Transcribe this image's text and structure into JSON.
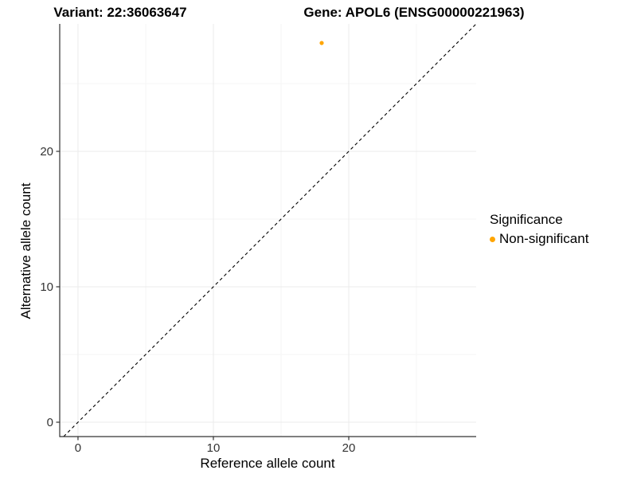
{
  "titles": {
    "left": "Variant: 22:36063647",
    "right": "Gene: APOL6 (ENSG00000221963)"
  },
  "chart_data": {
    "type": "scatter",
    "title": "Variant: 22:36063647   Gene: APOL6 (ENSG00000221963)",
    "xlabel": "Reference allele count",
    "ylabel": "Alternative allele count",
    "xlim": [
      -1.35,
      29.41
    ],
    "ylim": [
      -1.06,
      29.41
    ],
    "xticks": [
      0,
      10,
      20
    ],
    "yticks": [
      0,
      10,
      20
    ],
    "minor_xticks": [
      5,
      15,
      25
    ],
    "minor_yticks": [
      5,
      15,
      25
    ],
    "grid": true,
    "points": [
      {
        "x": 18,
        "y": 28,
        "series": "Non-significant",
        "color": "#FFA500",
        "radius": 2.6
      }
    ],
    "identity_line": {
      "equation": "y = x",
      "style": "dashed",
      "color": "#000000"
    },
    "legend": {
      "title": "Significance",
      "position": "right",
      "items": [
        {
          "label": "Non-significant",
          "color": "#FFA500"
        }
      ]
    },
    "colors": {
      "axis_line": "#333333",
      "tick_label": "#333333",
      "grid_major": "#ebebeb",
      "grid_minor": "#f5f5f5",
      "background": "#ffffff"
    }
  }
}
